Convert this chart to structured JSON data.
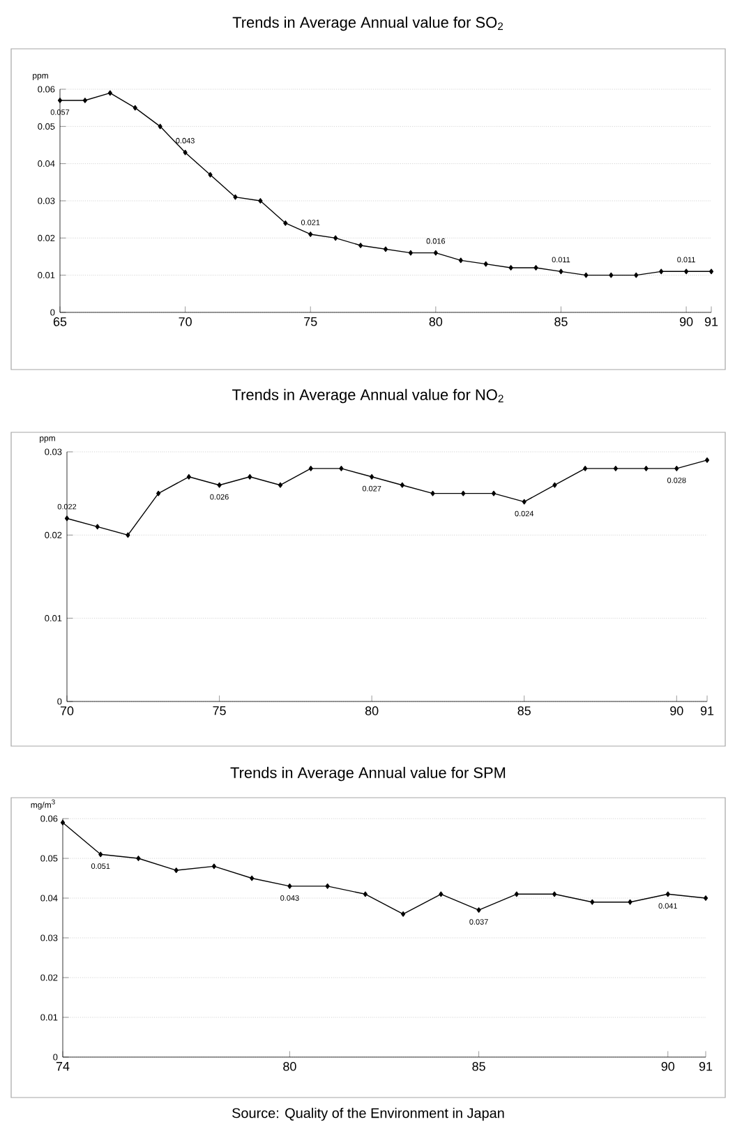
{
  "chart_data": [
    {
      "type": "line",
      "title": "Trends in Average Annual value for SO$_{2}$",
      "ylabel": "ppm",
      "color": "#000000",
      "marker": "diamond",
      "grid": "y",
      "x": [
        65,
        66,
        67,
        68,
        69,
        70,
        71,
        72,
        73,
        74,
        75,
        76,
        77,
        78,
        79,
        80,
        81,
        82,
        83,
        84,
        85,
        86,
        87,
        88,
        89,
        90,
        91
      ],
      "values": [
        0.057,
        0.057,
        0.059,
        0.055,
        0.05,
        0.043,
        0.037,
        0.031,
        0.03,
        0.024,
        0.021,
        0.02,
        0.018,
        0.017,
        0.016,
        0.016,
        0.014,
        0.013,
        0.012,
        0.012,
        0.011,
        0.01,
        0.01,
        0.01,
        0.011,
        0.011,
        0.011
      ],
      "value_labels": [
        "0.057",
        null,
        null,
        null,
        null,
        "0.043",
        null,
        null,
        null,
        null,
        "0.021",
        null,
        null,
        null,
        null,
        "0.016",
        null,
        null,
        null,
        null,
        "0.011",
        null,
        null,
        null,
        null,
        "0.011",
        null
      ],
      "xlim": [
        65,
        91
      ],
      "xticks": [
        65,
        70,
        75,
        80,
        85,
        90,
        91
      ],
      "ylim": [
        0,
        0.06
      ],
      "yticks": [
        0,
        0.01,
        0.02,
        0.03,
        0.04,
        0.05,
        0.06
      ]
    },
    {
      "type": "line",
      "title": "Trends in Average Annual value for NO$_{2}$",
      "ylabel": "ppm",
      "color": "#000000",
      "marker": "diamond",
      "grid": "y",
      "x": [
        70,
        71,
        72,
        73,
        74,
        75,
        76,
        77,
        78,
        79,
        80,
        81,
        82,
        83,
        84,
        85,
        86,
        87,
        88,
        89,
        90,
        91
      ],
      "values": [
        0.022,
        0.021,
        0.02,
        0.025,
        0.027,
        0.026,
        0.027,
        0.026,
        0.028,
        0.028,
        0.027,
        0.026,
        0.025,
        0.025,
        0.025,
        0.024,
        0.026,
        0.028,
        0.028,
        0.028,
        0.028,
        0.029
      ],
      "value_labels": [
        "0.022",
        null,
        null,
        null,
        null,
        "0.026",
        null,
        null,
        null,
        null,
        "0.027",
        null,
        null,
        null,
        null,
        "0.024",
        null,
        null,
        null,
        null,
        "0.028",
        null
      ],
      "xlim": [
        70,
        91
      ],
      "xticks": [
        70,
        75,
        80,
        85,
        90,
        91
      ],
      "ylim": [
        0,
        0.03
      ],
      "yticks": [
        0,
        0.01,
        0.02,
        0.03
      ]
    },
    {
      "type": "line",
      "title": "Trends in Average Annual value for SPM",
      "ylabel": "mg/m$^{3}$",
      "color": "#000000",
      "marker": "diamond",
      "grid": "y",
      "x": [
        74,
        75,
        76,
        77,
        78,
        79,
        80,
        81,
        82,
        83,
        84,
        85,
        86,
        87,
        88,
        89,
        90,
        91
      ],
      "values": [
        0.059,
        0.051,
        0.05,
        0.047,
        0.048,
        0.045,
        0.043,
        0.043,
        0.041,
        0.036,
        0.041,
        0.037,
        0.041,
        0.041,
        0.039,
        0.039,
        0.041,
        0.04
      ],
      "value_labels": [
        null,
        "0.051",
        null,
        null,
        null,
        null,
        "0.043",
        null,
        null,
        null,
        null,
        "0.037",
        null,
        null,
        null,
        null,
        "0.041",
        null
      ],
      "xlim": [
        74,
        91
      ],
      "xticks": [
        74,
        80,
        85,
        90,
        91
      ],
      "ylim": [
        0,
        0.06
      ],
      "yticks": [
        0,
        0.01,
        0.02,
        0.03,
        0.04,
        0.05,
        0.06
      ],
      "annotations": [
        "Source: Quality of the Environment in Japan"
      ]
    }
  ]
}
